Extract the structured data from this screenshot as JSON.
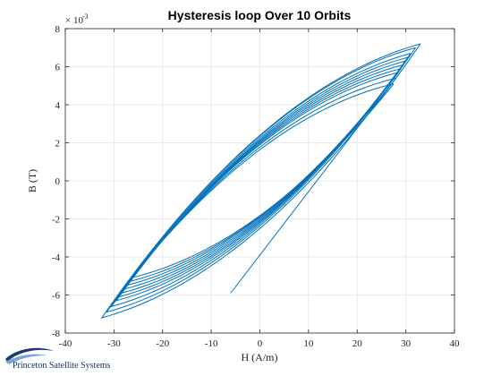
{
  "chart_data": {
    "type": "line",
    "title": "Hysteresis loop Over 10 Orbits",
    "xlabel": "H (A/m)",
    "ylabel": "B (T)",
    "y_multiplier_base": "× 10",
    "y_multiplier_exp": "-3",
    "xlim": [
      -40,
      40
    ],
    "ylim": [
      -8,
      8
    ],
    "xticks": [
      -40,
      -30,
      -20,
      -10,
      0,
      10,
      20,
      30,
      40
    ],
    "yticks": [
      -8,
      -6,
      -4,
      -2,
      0,
      2,
      4,
      6,
      8
    ],
    "grid": true,
    "line_color": "#0072BD",
    "series": [
      {
        "values_note": "",
        "initial_segment": {
          "x": [
            -6,
            27
          ],
          "y": [
            -5.9,
            5.1
          ]
        },
        "loops": [
          {
            "h_min": -26.5,
            "h_max": 27.5,
            "b_min": -5.1,
            "b_max": 5.1
          },
          {
            "h_min": -27.0,
            "h_max": 28.0,
            "b_min": -5.3,
            "b_max": 5.4
          },
          {
            "h_min": -27.5,
            "h_max": 28.5,
            "b_min": -5.5,
            "b_max": 5.7
          },
          {
            "h_min": -28.0,
            "h_max": 29.0,
            "b_min": -5.7,
            "b_max": 5.9
          },
          {
            "h_min": -28.5,
            "h_max": 29.5,
            "b_min": -5.9,
            "b_max": 6.1
          },
          {
            "h_min": -29.0,
            "h_max": 30.0,
            "b_min": -6.1,
            "b_max": 6.3
          },
          {
            "h_min": -29.5,
            "h_max": 30.5,
            "b_min": -6.3,
            "b_max": 6.5
          },
          {
            "h_min": -30.5,
            "h_max": 31.0,
            "b_min": -6.6,
            "b_max": 6.7
          },
          {
            "h_min": -31.5,
            "h_max": 32.0,
            "b_min": -6.9,
            "b_max": 7.0
          },
          {
            "h_min": -32.5,
            "h_max": 33.0,
            "b_min": -7.2,
            "b_max": 7.2
          }
        ]
      }
    ]
  },
  "branding": {
    "company": "Princeton Satellite Systems",
    "logo_colors": {
      "primary": "#1b3a73",
      "accent": "#7fa3d4"
    }
  }
}
